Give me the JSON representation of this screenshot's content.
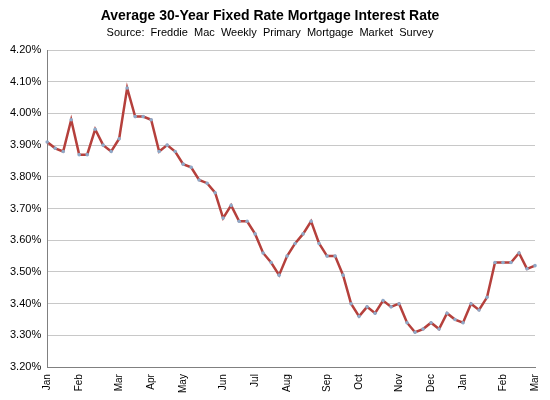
{
  "chart_data": {
    "type": "line",
    "title": "Average 30-Year Fixed Rate Mortgage Interest Rate",
    "subtitle": "Source:  Freddie  Mac  Weekly  Primary  Mortgage  Market  Survey",
    "categories": [
      "Jan",
      null,
      null,
      null,
      "Feb",
      null,
      null,
      null,
      null,
      "Mar",
      null,
      null,
      null,
      "Apr",
      null,
      null,
      null,
      "May",
      null,
      null,
      null,
      null,
      "Jun",
      null,
      null,
      null,
      "Jul",
      null,
      null,
      null,
      "Aug",
      null,
      null,
      null,
      null,
      "Sep",
      null,
      null,
      null,
      "Oct",
      null,
      null,
      null,
      null,
      "Nov",
      null,
      null,
      null,
      "Dec",
      null,
      null,
      null,
      "Jan",
      null,
      null,
      null,
      null,
      "Feb",
      null,
      null,
      null,
      "Mar"
    ],
    "series": [
      {
        "name": "Average 30-Year Fixed Rate Mortgage Interest Rate",
        "color": "#b5403c",
        "marker": "circle",
        "line_style": "solid",
        "values": [
          3.91,
          3.89,
          3.88,
          3.98,
          3.87,
          3.87,
          3.95,
          3.9,
          3.88,
          3.92,
          4.08,
          3.99,
          3.99,
          3.98,
          3.88,
          3.9,
          3.88,
          3.84,
          3.83,
          3.79,
          3.78,
          3.75,
          3.67,
          3.71,
          3.66,
          3.66,
          3.62,
          3.56,
          3.53,
          3.49,
          3.55,
          3.59,
          3.62,
          3.66,
          3.59,
          3.55,
          3.55,
          3.49,
          3.4,
          3.36,
          3.39,
          3.37,
          3.41,
          3.39,
          3.4,
          3.34,
          3.31,
          3.32,
          3.34,
          3.32,
          3.37,
          3.35,
          3.34,
          3.4,
          3.38,
          3.42,
          3.53,
          3.53,
          3.53,
          3.56,
          3.51,
          3.52
        ]
      }
    ],
    "ylim": [
      3.2,
      4.2
    ],
    "yticks": [
      {
        "value": 3.2,
        "label": "3.20%"
      },
      {
        "value": 3.3,
        "label": "3.30%"
      },
      {
        "value": 3.4,
        "label": "3.40%"
      },
      {
        "value": 3.5,
        "label": "3.50%"
      },
      {
        "value": 3.6,
        "label": "3.60%"
      },
      {
        "value": 3.7,
        "label": "3.70%"
      },
      {
        "value": 3.8,
        "label": "3.80%"
      },
      {
        "value": 3.9,
        "label": "3.90%"
      },
      {
        "value": 4.0,
        "label": "4.00%"
      },
      {
        "value": 4.1,
        "label": "4.10%"
      },
      {
        "value": 4.2,
        "label": "4.20%"
      }
    ],
    "grid": true
  }
}
